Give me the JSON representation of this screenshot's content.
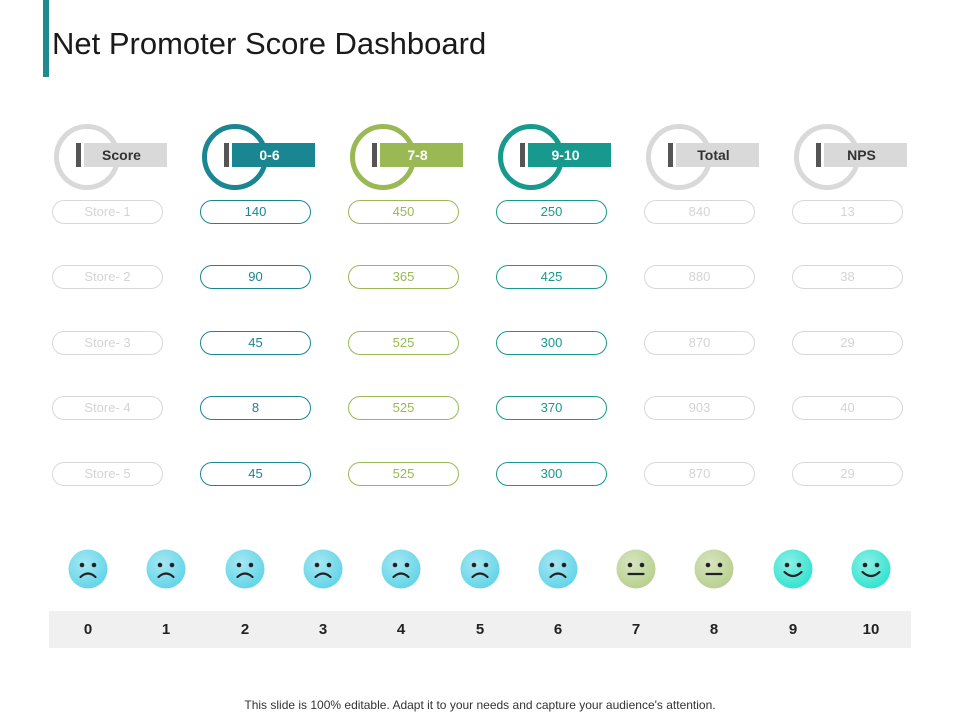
{
  "title": "Net Promoter Score Dashboard",
  "columns": [
    {
      "label": "Score",
      "style": "grey",
      "values": [
        "Store- 1",
        "Store- 2",
        "Store- 3",
        "Store- 4",
        "Store- 5"
      ]
    },
    {
      "label": "0-6",
      "style": "teal",
      "values": [
        "140",
        "90",
        "45",
        "8",
        "45"
      ]
    },
    {
      "label": "7-8",
      "style": "green",
      "values": [
        "450",
        "365",
        "525",
        "525",
        "525"
      ]
    },
    {
      "label": "9-10",
      "style": "teal2",
      "values": [
        "250",
        "425",
        "300",
        "370",
        "300"
      ]
    },
    {
      "label": "Total",
      "style": "grey",
      "values": [
        "840",
        "880",
        "870",
        "903",
        "870"
      ]
    },
    {
      "label": "NPS",
      "style": "grey",
      "values": [
        "13",
        "38",
        "29",
        "40",
        "29"
      ]
    }
  ],
  "scale": {
    "numbers": [
      "0",
      "1",
      "2",
      "3",
      "4",
      "5",
      "6",
      "7",
      "8",
      "9",
      "10"
    ],
    "faces": [
      "sad-face-icon",
      "sad-face-icon",
      "sad-face-icon",
      "sad-face-icon",
      "sad-face-icon",
      "sad-face-icon",
      "sad-face-icon",
      "neutral-face-icon",
      "neutral-face-icon",
      "happy-face-icon",
      "happy-face-icon"
    ]
  },
  "colors": {
    "teal": "#1a8691",
    "green": "#9ab954",
    "teal2": "#17998d",
    "grey": "#d9d9d9",
    "sad_face": "#5fd4e8",
    "neutral_face": "#b7cf8d",
    "happy_face": "#2ee3cf"
  },
  "footer": "This slide is 100% editable. Adapt it to your needs and capture your audience's attention."
}
